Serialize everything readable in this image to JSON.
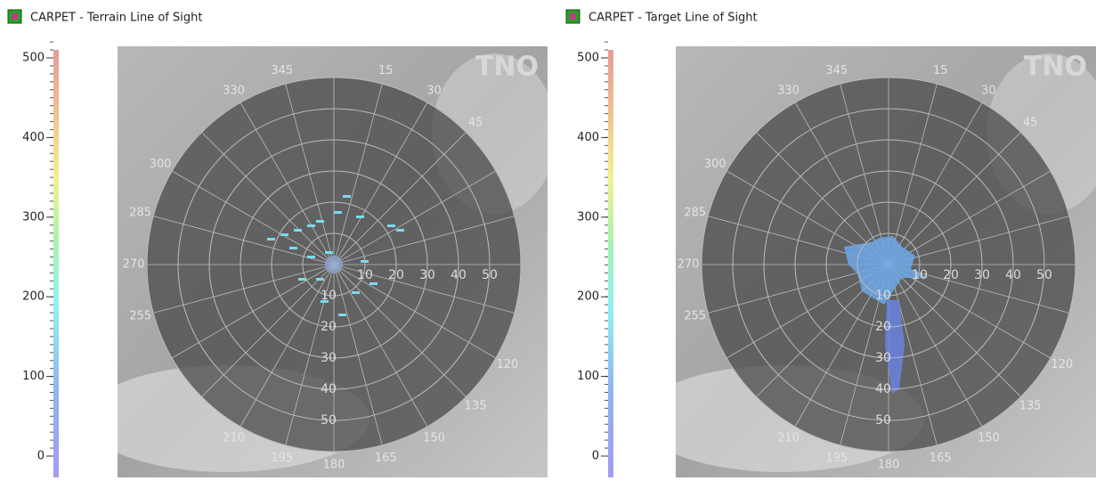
{
  "panels": [
    {
      "title": "CARPET - Terrain Line of Sight",
      "watermark": "TNO",
      "colorbar": {
        "ticks": [
          0,
          100,
          200,
          300,
          400,
          500
        ]
      },
      "range_labels": [
        10,
        20,
        30,
        40,
        50
      ],
      "bearing_labels": [
        15,
        30,
        45,
        120,
        135,
        150,
        165,
        180,
        195,
        210,
        255,
        270,
        285,
        300,
        330,
        345
      ]
    },
    {
      "title": "CARPET - Target Line of Sight",
      "watermark": "TNO",
      "colorbar": {
        "ticks": [
          0,
          100,
          200,
          300,
          400,
          500
        ]
      },
      "range_labels": [
        10,
        20,
        30,
        40,
        50
      ],
      "bearing_labels": [
        15,
        30,
        45,
        120,
        135,
        150,
        165,
        180,
        195,
        210,
        255,
        270,
        285,
        300,
        330,
        345
      ]
    }
  ]
}
